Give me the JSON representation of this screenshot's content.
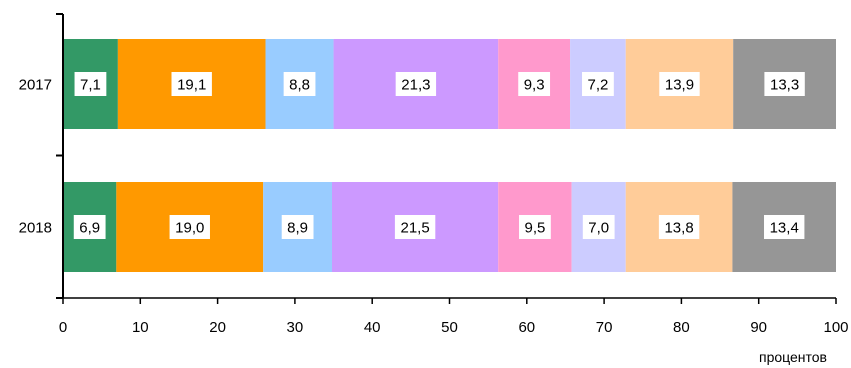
{
  "chart_data": {
    "type": "bar",
    "orientation": "horizontal",
    "stacked": true,
    "categories": [
      "2017",
      "2018"
    ],
    "series": [
      {
        "values": [
          7.1,
          6.9
        ],
        "labels": [
          "7,1",
          "6,9"
        ],
        "color": "#339966"
      },
      {
        "values": [
          19.1,
          19.0
        ],
        "labels": [
          "19,1",
          "19,0"
        ],
        "color": "#ff9900"
      },
      {
        "values": [
          8.8,
          8.9
        ],
        "labels": [
          "8,8",
          "8,9"
        ],
        "color": "#99ccff"
      },
      {
        "values": [
          21.3,
          21.5
        ],
        "labels": [
          "21,3",
          "21,5"
        ],
        "color": "#cc99ff"
      },
      {
        "values": [
          9.3,
          9.5
        ],
        "labels": [
          "9,3",
          "9,5"
        ],
        "color": "#ff99cc"
      },
      {
        "values": [
          7.2,
          7.0
        ],
        "labels": [
          "7,2",
          "7,0"
        ],
        "color": "#ccccff"
      },
      {
        "values": [
          13.9,
          13.8
        ],
        "labels": [
          "13,9",
          "13,8"
        ],
        "color": "#ffcc99"
      },
      {
        "values": [
          13.3,
          13.4
        ],
        "labels": [
          "13,3",
          "13,4"
        ],
        "color": "#969696"
      }
    ],
    "xlim": [
      0,
      100
    ],
    "xticks": [
      0,
      10,
      20,
      30,
      40,
      50,
      60,
      70,
      80,
      90,
      100
    ],
    "xlabel": "процентов",
    "grid": false,
    "legend": false
  }
}
